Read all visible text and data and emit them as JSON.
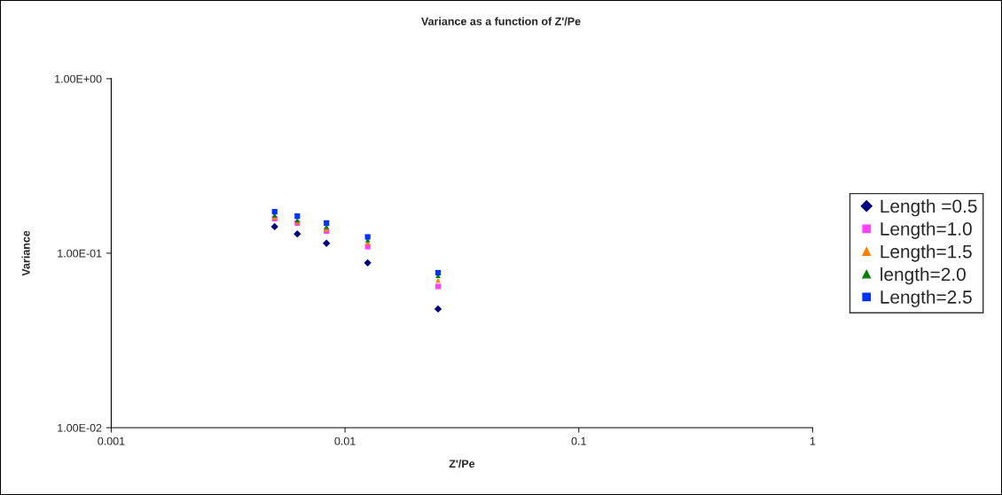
{
  "chart_data": {
    "type": "scatter",
    "title": "Variance as a function of Z'/Pe",
    "xlabel": "Z'/Pe",
    "ylabel": "Variance",
    "x": [
      0.005,
      0.00625,
      0.00833,
      0.0125,
      0.025
    ],
    "series": [
      {
        "name": "Length =0.5",
        "color": "#000080",
        "marker": "diamond",
        "values": [
          0.142,
          0.129,
          0.114,
          0.088,
          0.0479
        ]
      },
      {
        "name": "Length=1.0",
        "color": "#ff40ff",
        "marker": "square",
        "values": [
          0.158,
          0.149,
          0.134,
          0.109,
          0.0645
        ]
      },
      {
        "name": "Length=1.5",
        "color": "#ff8000",
        "marker": "triangle",
        "values": [
          0.16,
          0.151,
          0.137,
          0.115,
          0.0699
        ]
      },
      {
        "name": "length=2.0",
        "color": "#008000",
        "marker": "triangle",
        "values": [
          0.165,
          0.155,
          0.142,
          0.119,
          0.0744
        ]
      },
      {
        "name": "Length=2.5",
        "color": "#0033ff",
        "marker": "square",
        "values": [
          0.173,
          0.163,
          0.149,
          0.124,
          0.0773
        ]
      }
    ],
    "log": "xy",
    "xlim": [
      0.001,
      1
    ],
    "ylim": [
      0.01,
      1
    ],
    "xticks": [
      0.001,
      0.01,
      0.1,
      1
    ],
    "yticks": [
      {
        "value": 0.01,
        "label": "1.00E-02"
      },
      {
        "value": 0.1,
        "label": "1.00E-01"
      },
      {
        "value": 1,
        "label": "1.00E+00"
      }
    ],
    "grid": false,
    "legend": "right"
  }
}
